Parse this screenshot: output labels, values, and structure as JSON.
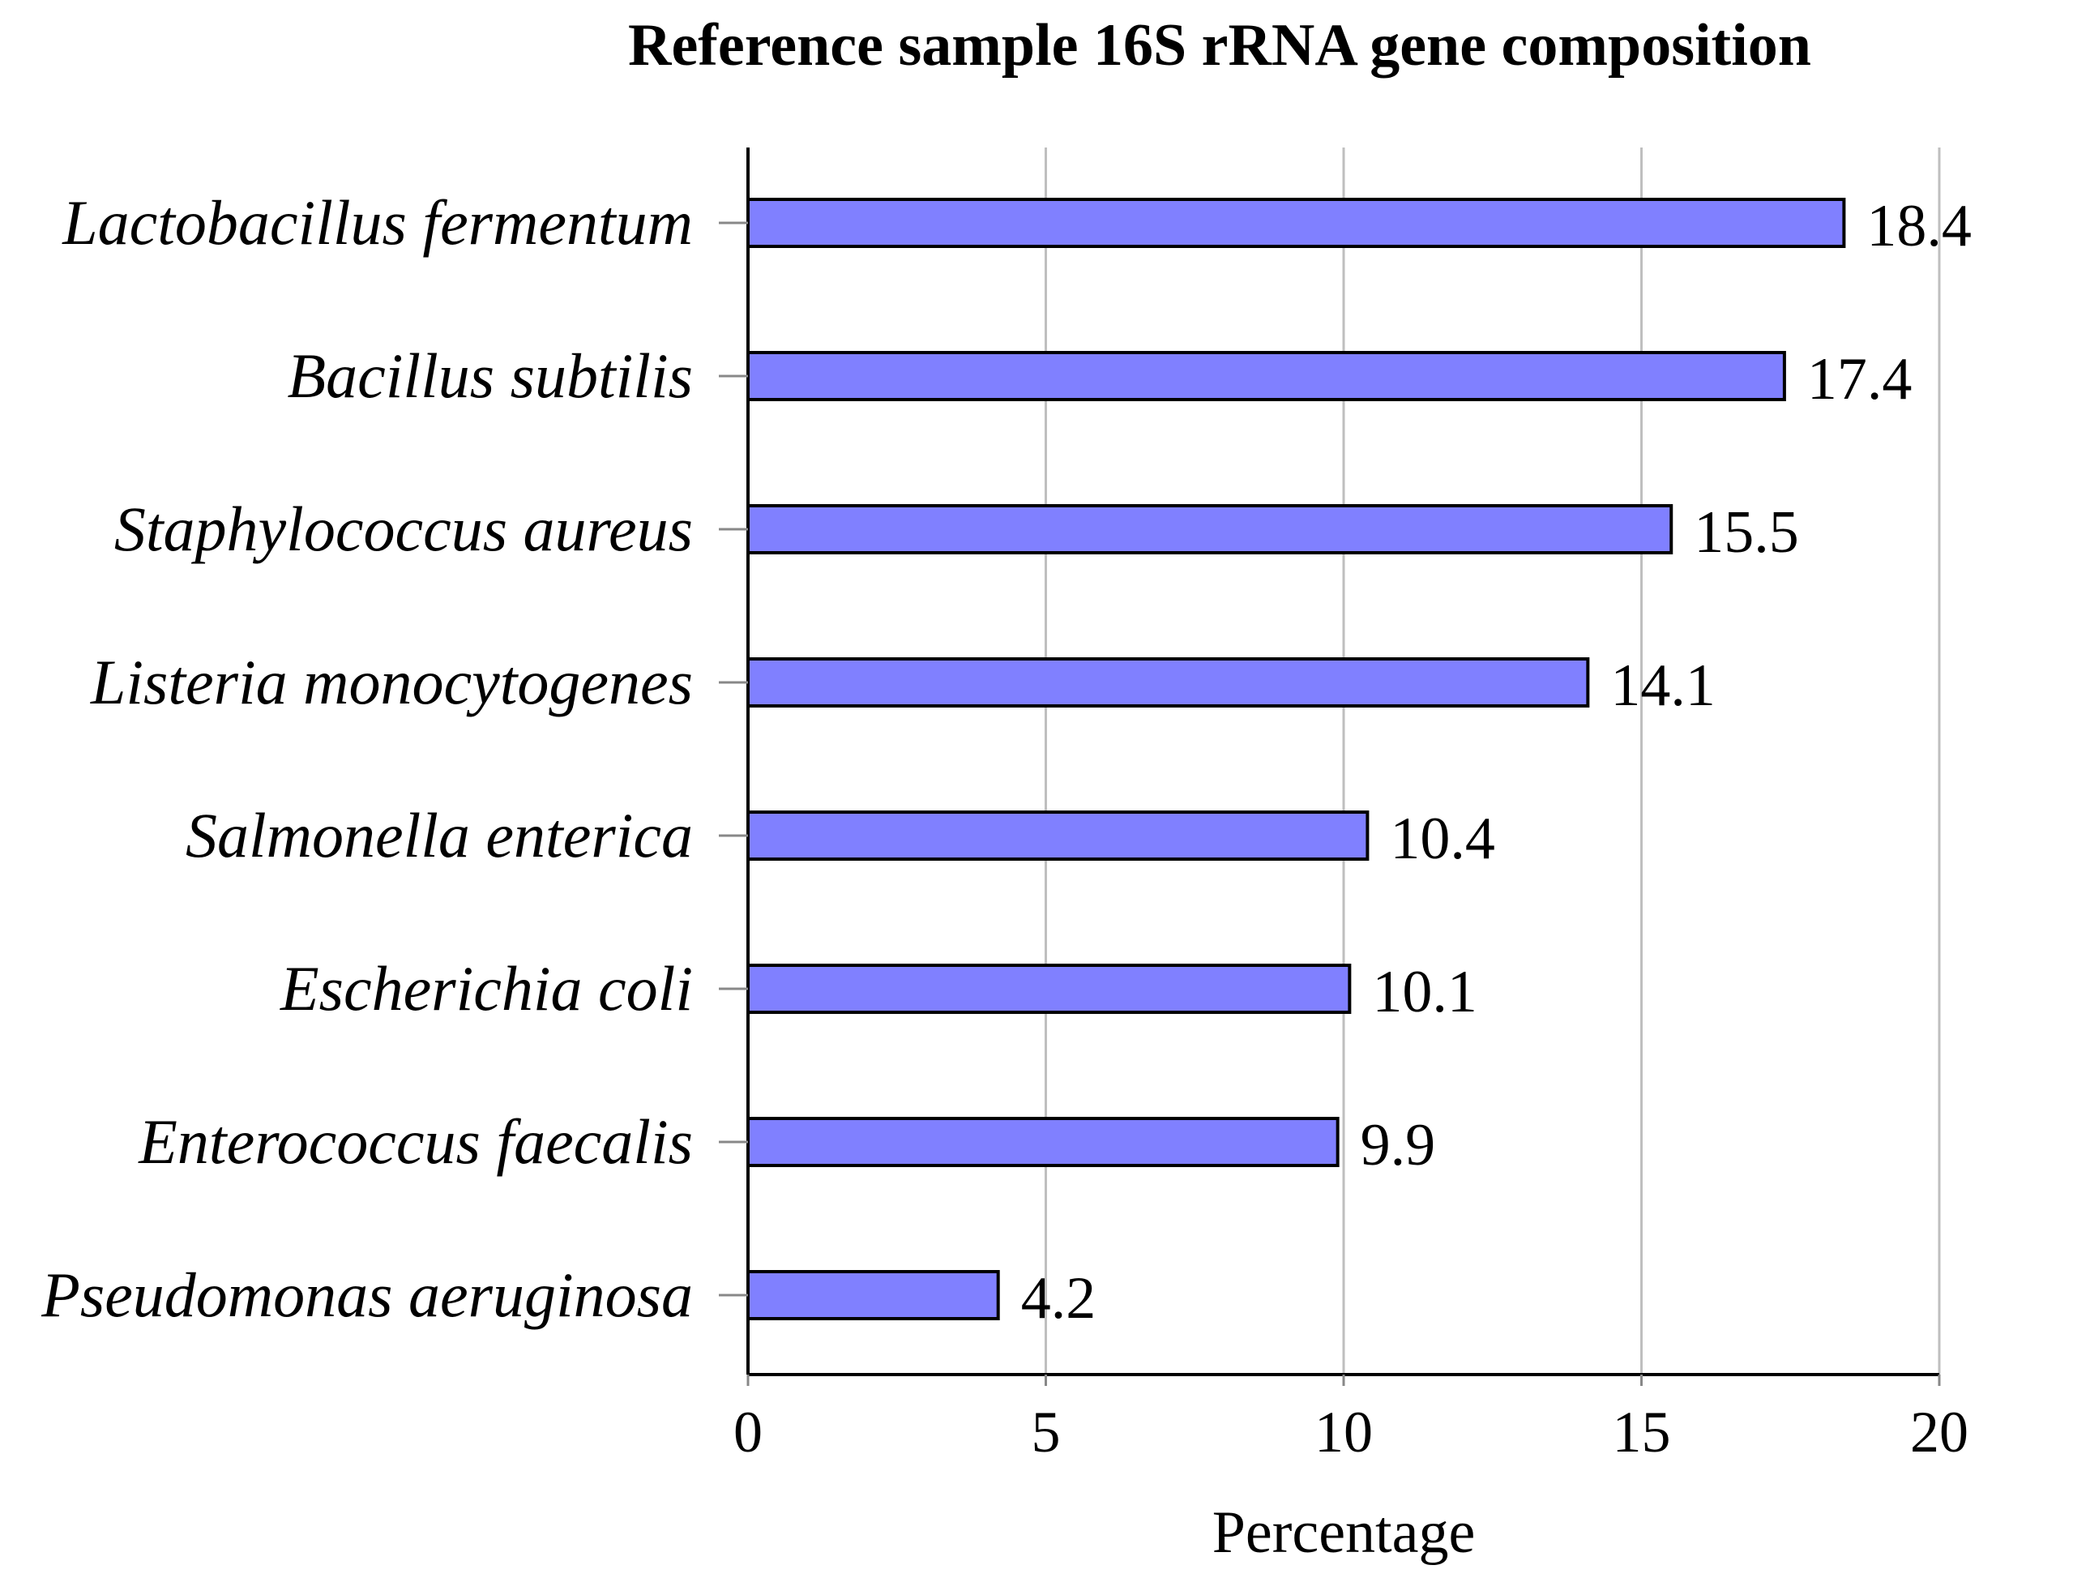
{
  "chart_data": {
    "type": "bar",
    "orientation": "horizontal",
    "title": "Reference sample 16S rRNA gene composition",
    "xlabel": "Percentage",
    "ylabel": "",
    "xlim": [
      0,
      20
    ],
    "xticks": [
      0,
      5,
      10,
      15,
      20
    ],
    "grid": true,
    "categories": [
      "Lactobacillus fermentum",
      "Bacillus subtilis",
      "Staphylococcus aureus",
      "Listeria monocytogenes",
      "Salmonella enterica",
      "Escherichia coli",
      "Enterococcus faecalis",
      "Pseudomonas aeruginosa"
    ],
    "values": [
      18.4,
      17.4,
      15.5,
      14.1,
      10.4,
      10.1,
      9.9,
      4.2
    ],
    "value_labels": [
      "18.4",
      "17.4",
      "15.5",
      "14.1",
      "10.4",
      "10.1",
      "9.9",
      "4.2"
    ],
    "colors": {
      "bar_fill": "#8080ff",
      "bar_stroke": "#000000",
      "grid": "#bfbfbf",
      "axis": "#000000"
    }
  }
}
